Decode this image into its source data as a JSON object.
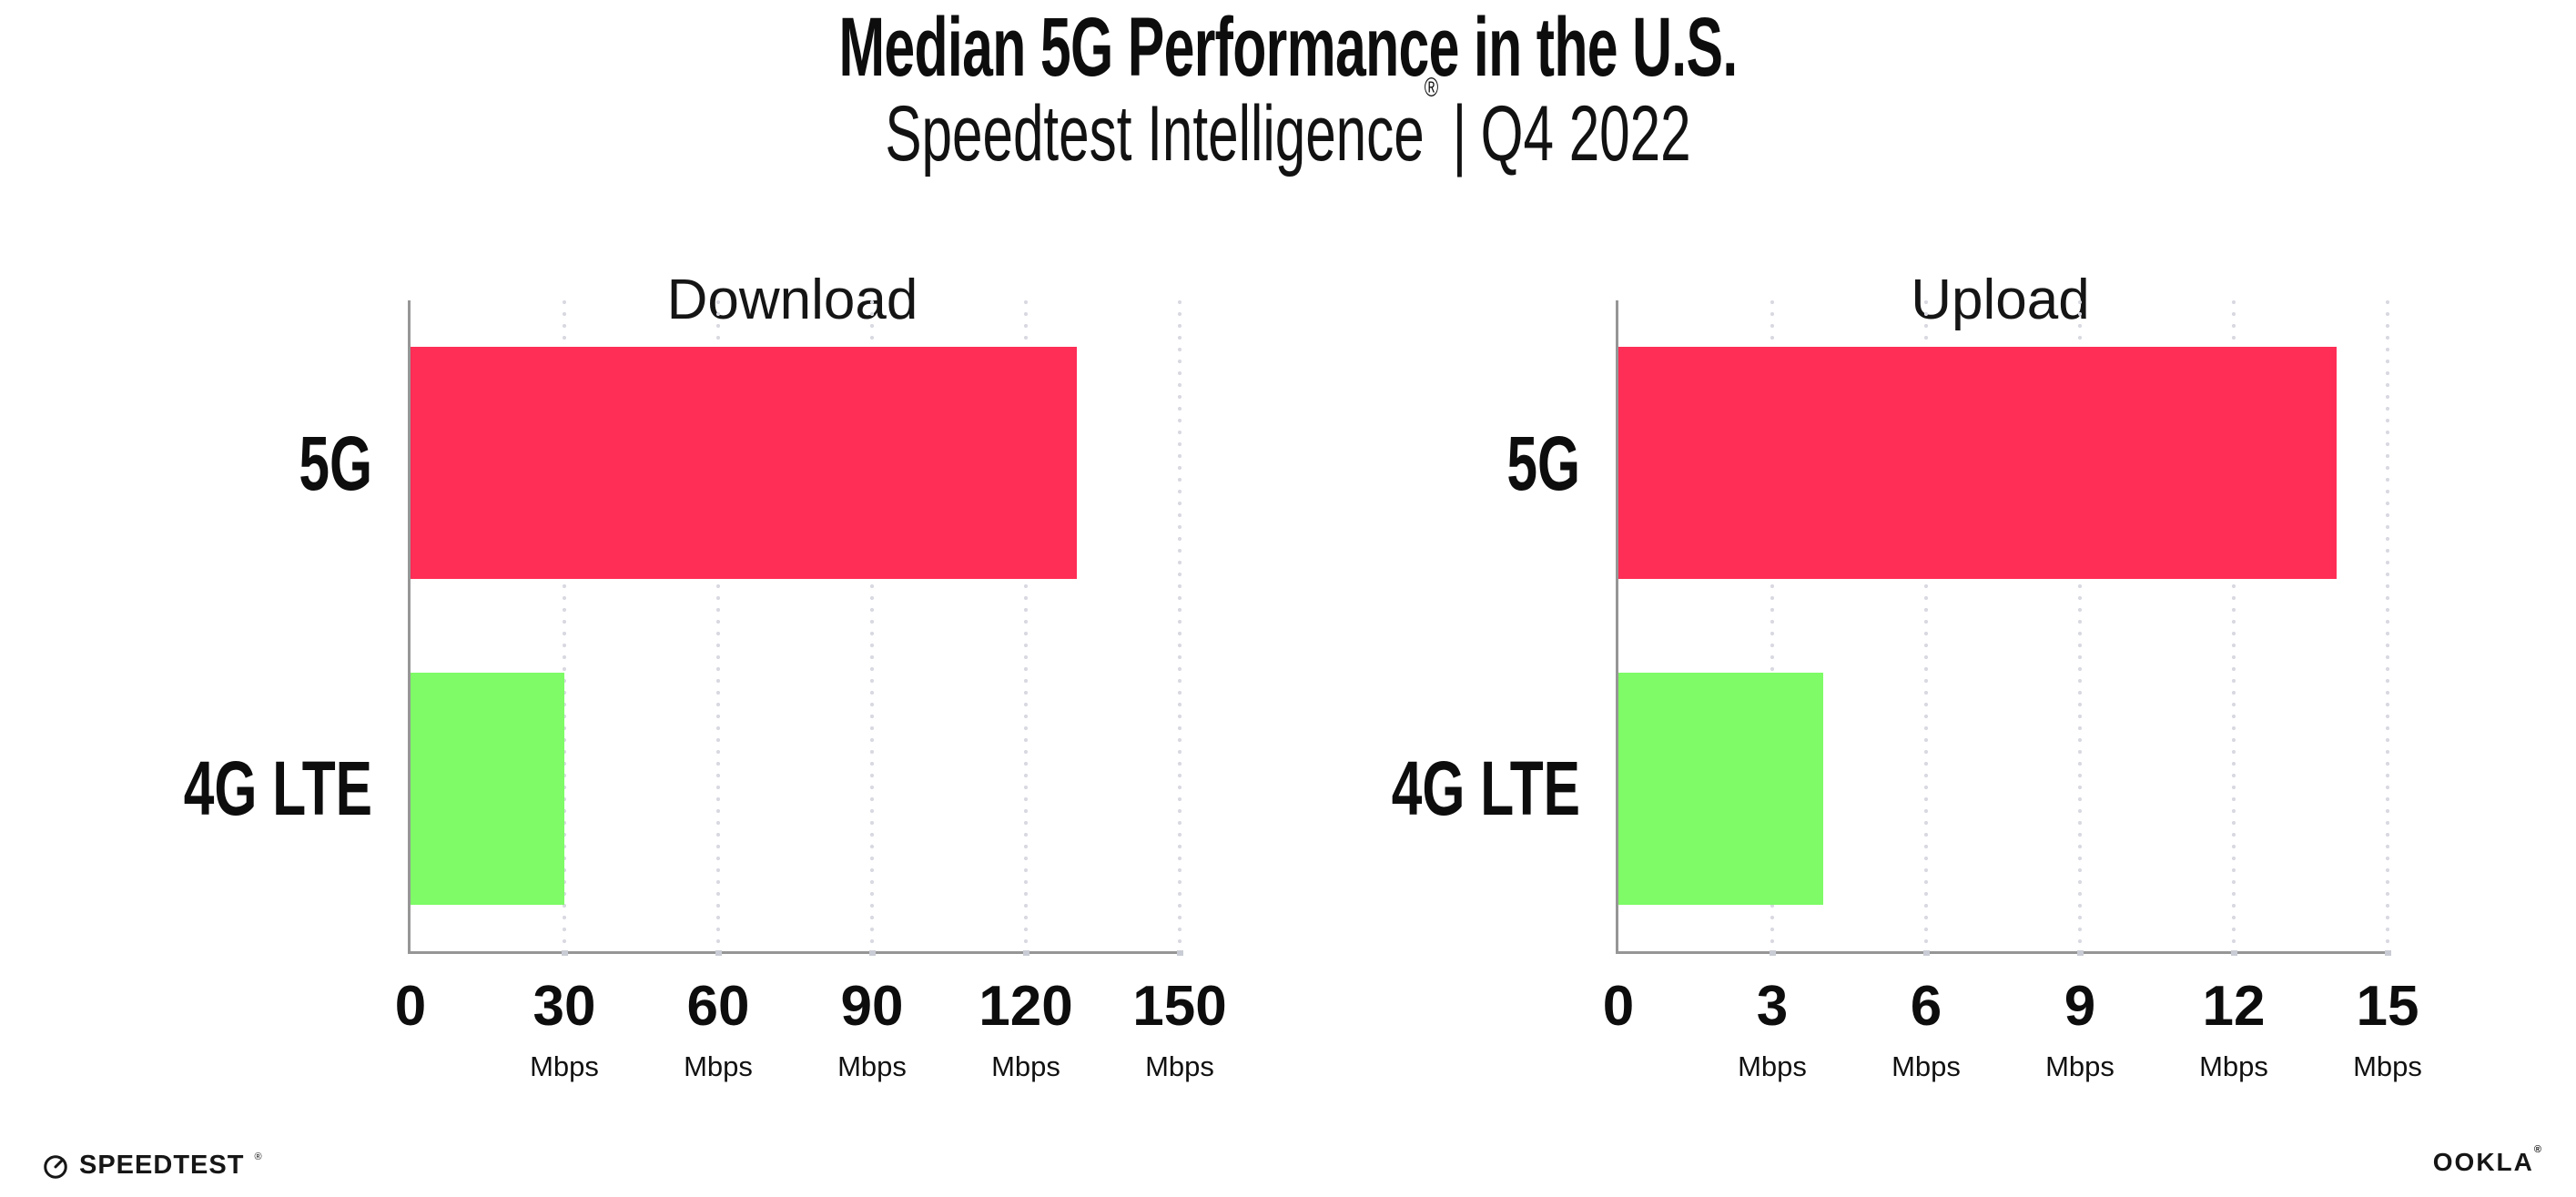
{
  "header": {
    "title": "Median 5G Performance in the U.S.",
    "subtitle": {
      "brand": "Speedtest Intelligence",
      "registered": "®",
      "separator": "|",
      "period": "Q4 2022"
    }
  },
  "chart_data": [
    {
      "type": "bar",
      "orientation": "horizontal",
      "title": "Download",
      "categories": [
        "5G",
        "4G LTE"
      ],
      "values": [
        130,
        30
      ],
      "unit": "Mbps",
      "xticks": [
        0,
        30,
        60,
        90,
        120,
        150
      ],
      "xlim": [
        0,
        150
      ],
      "bar_colors": [
        "#FF2E56",
        "#7EFB66"
      ],
      "grid": "vertical-dotted",
      "legend": "none"
    },
    {
      "type": "bar",
      "orientation": "horizontal",
      "title": "Upload",
      "categories": [
        "5G",
        "4G LTE"
      ],
      "values": [
        14,
        4
      ],
      "unit": "Mbps",
      "xticks": [
        0,
        3,
        6,
        9,
        12,
        15
      ],
      "xlim": [
        0,
        15
      ],
      "bar_colors": [
        "#FF2E56",
        "#7EFB66"
      ],
      "grid": "vertical-dotted",
      "legend": "none"
    }
  ],
  "footer": {
    "speedtest_label": "SPEEDTEST",
    "speedtest_registered": "®",
    "speedtest_icon": "speedtest-gauge-icon",
    "ookla_label": "OOKLA",
    "ookla_registered": "®"
  },
  "colors": {
    "bar_5g": "#FF2E56",
    "bar_4g_lte": "#7EFB66",
    "axis": "#969696",
    "gridline_dots": "#d9d9e2",
    "text": "#0d0d0d",
    "background": "#ffffff"
  }
}
